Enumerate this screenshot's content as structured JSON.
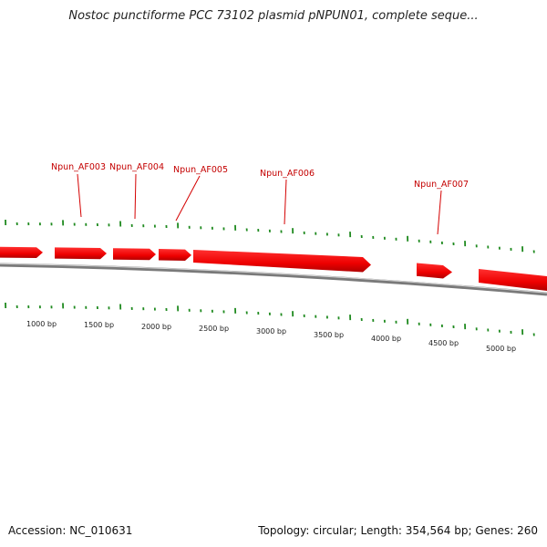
{
  "title": "Nostoc punctiforme PCC 73102 plasmid pNPUN01, complete seque...",
  "footer": {
    "accession": "Accession: NC_010631",
    "summary": "Topology: circular; Length: 354,564 bp; Genes: 260"
  },
  "colors": {
    "gene_fill": "#ff0000",
    "gene_shade": "#b80000",
    "backbone": "#777777",
    "tick": "#1f8a1f",
    "label": "#c40000"
  },
  "bp_ticks": [
    "1000 bp",
    "1500 bp",
    "2000 bp",
    "2500 bp",
    "3000 bp",
    "3500 bp",
    "4000 bp",
    "4500 bp",
    "5000 bp"
  ],
  "gene_labels": [
    "Npun_AF003",
    "Npun_AF004",
    "Npun_AF005",
    "Npun_AF006",
    "Npun_AF007"
  ]
}
